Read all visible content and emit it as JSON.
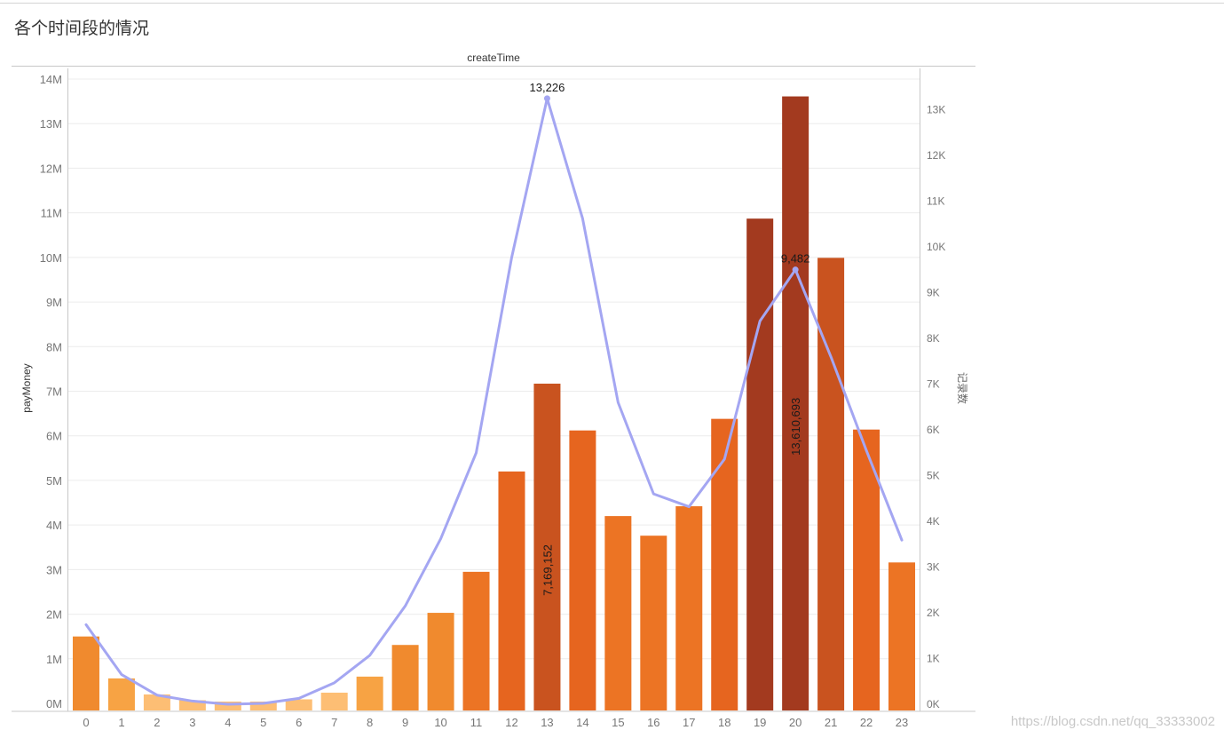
{
  "title": "各个时间段的情况",
  "chart_header": "createTime",
  "watermark": "https://blog.csdn.net/qq_33333002",
  "chart_data": {
    "type": "bar",
    "xlabel": "",
    "ylabel": "payMoney",
    "y2label": "记录数",
    "categories": [
      "0",
      "1",
      "2",
      "3",
      "4",
      "5",
      "6",
      "7",
      "8",
      "9",
      "10",
      "11",
      "12",
      "13",
      "14",
      "15",
      "16",
      "17",
      "18",
      "19",
      "20",
      "21",
      "22",
      "23"
    ],
    "series": [
      {
        "type": "bar",
        "axis": "left",
        "values": [
          1500000,
          560000,
          200000,
          70000,
          40000,
          40000,
          90000,
          240000,
          600000,
          1310000,
          2030000,
          2950000,
          5200000,
          7169152,
          6120000,
          4200000,
          3760000,
          4420000,
          6380000,
          10870000,
          13610693,
          9990000,
          6140000,
          3160000
        ]
      },
      {
        "type": "line",
        "axis": "right",
        "values": [
          1720,
          630,
          180,
          50,
          -20,
          0,
          110,
          450,
          1050,
          2130,
          3600,
          5480,
          9750,
          13226,
          10600,
          6580,
          4580,
          4300,
          5340,
          8360,
          9482,
          7580,
          5530,
          3570
        ]
      }
    ],
    "ylim": [
      0,
      14000000
    ],
    "y_ticks": [
      "0M",
      "1M",
      "2M",
      "3M",
      "4M",
      "5M",
      "6M",
      "7M",
      "8M",
      "9M",
      "10M",
      "11M",
      "12M",
      "13M",
      "14M"
    ],
    "y2lim": [
      0,
      13500
    ],
    "y2_ticks": [
      "0K",
      "1K",
      "2K",
      "3K",
      "4K",
      "5K",
      "6K",
      "7K",
      "8K",
      "9K",
      "10K",
      "11K",
      "12K",
      "13K"
    ],
    "data_labels": [
      {
        "series": 0,
        "index": 13,
        "text": "7,169,152"
      },
      {
        "series": 0,
        "index": 20,
        "text": "13,610,693"
      },
      {
        "series": 1,
        "index": 13,
        "text": "13,226"
      },
      {
        "series": 1,
        "index": 20,
        "text": "9,482"
      }
    ],
    "grid": true,
    "colors": {
      "line": "#a4a6f2",
      "bar_scale": [
        "#fdbe74",
        "#f7a344",
        "#f08a2e",
        "#ec7424",
        "#e6651f",
        "#c9531f",
        "#a33a1f"
      ],
      "grid": "#ececec",
      "tick": "#777777"
    }
  }
}
